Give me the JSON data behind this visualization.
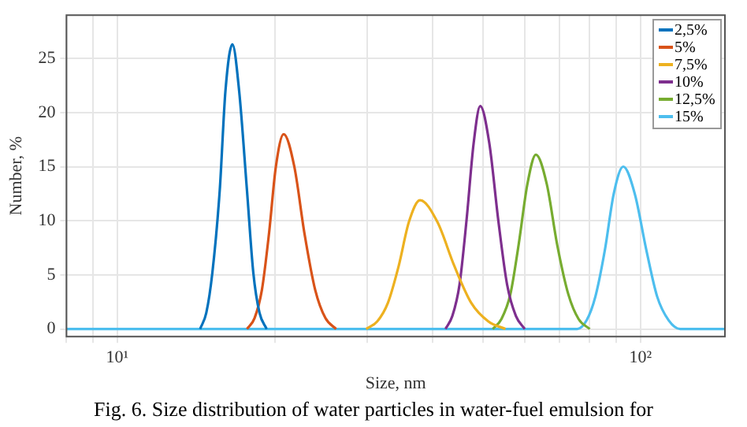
{
  "chart_data": {
    "type": "line",
    "xlabel": "Size, nm",
    "ylabel": "Number, %",
    "annotations": [
      "Fig. 6. Size distribution of water particles in water-fuel emulsion for"
    ],
    "log": "x",
    "xlim": [
      8,
      145
    ],
    "ylim": [
      -0.7,
      29
    ],
    "xticks": [
      {
        "value": 8,
        "label": null
      },
      {
        "value": 9,
        "label": null
      },
      {
        "value": 10,
        "label": "10¹"
      },
      {
        "value": 20,
        "label": null
      },
      {
        "value": 30,
        "label": null
      },
      {
        "value": 40,
        "label": null
      },
      {
        "value": 50,
        "label": null
      },
      {
        "value": 60,
        "label": null
      },
      {
        "value": 70,
        "label": null
      },
      {
        "value": 80,
        "label": null
      },
      {
        "value": 90,
        "label": null
      },
      {
        "value": 100,
        "label": "10²"
      }
    ],
    "yticks": [
      0,
      5,
      10,
      15,
      20,
      25
    ],
    "grid": true,
    "legend": "top right",
    "marker": "none",
    "line_style": "solid",
    "series": [
      {
        "name": "2,5%",
        "color": "#0072bd",
        "x": [
          14.4,
          14.8,
          15.2,
          15.7,
          16.1,
          16.6,
          17.1,
          17.7,
          18.2,
          18.7,
          19.3
        ],
        "values": [
          0,
          1.5,
          5.2,
          12.8,
          22,
          26.3,
          22,
          12.8,
          5.2,
          1.5,
          0
        ]
      },
      {
        "name": "5%",
        "color": "#d95319",
        "x": [
          17.7,
          18.3,
          18.9,
          19.5,
          20.1,
          20.8,
          21.8,
          22.8,
          23.9,
          25.0,
          26.2
        ],
        "values": [
          0,
          1.0,
          3.6,
          8.8,
          15.0,
          18,
          15.0,
          8.8,
          3.6,
          1.0,
          0
        ]
      },
      {
        "name": "7,5%",
        "color": "#edb120",
        "x": [
          29.9,
          31.4,
          32.9,
          34.5,
          36.1,
          37.9,
          40.9,
          44.1,
          47.5,
          51.2,
          55.2
        ],
        "values": [
          0,
          0.7,
          2.4,
          5.8,
          9.9,
          11.9,
          9.9,
          5.8,
          2.4,
          0.7,
          0
        ]
      },
      {
        "name": "10%",
        "color": "#7e2f8e",
        "x": [
          42.4,
          43.7,
          45.1,
          46.5,
          48.0,
          49.4,
          51.4,
          53.5,
          55.6,
          57.8,
          60.1
        ],
        "values": [
          0,
          1.2,
          4.1,
          10.0,
          17.2,
          20.6,
          17.2,
          10.0,
          4.1,
          1.2,
          0
        ]
      },
      {
        "name": "12,5%",
        "color": "#77ac30",
        "x": [
          52.2,
          54.2,
          56.4,
          58.5,
          60.8,
          63.1,
          66.2,
          69.3,
          72.8,
          76.2,
          80.0
        ],
        "values": [
          0,
          0.9,
          3.2,
          7.8,
          13.4,
          16.1,
          13.4,
          7.8,
          3.2,
          0.9,
          0
        ]
      },
      {
        "name": "15%",
        "color": "#4dbeee",
        "x": [
          8,
          75.7,
          78.9,
          82.0,
          85.5,
          88.9,
          92.7,
          97.5,
          102.6,
          107.6,
          113.2,
          119.1,
          145
        ],
        "values": [
          0,
          0,
          0.8,
          3.0,
          7.3,
          12.5,
          15,
          12.5,
          7.3,
          3.0,
          0.8,
          0,
          0
        ]
      }
    ]
  }
}
